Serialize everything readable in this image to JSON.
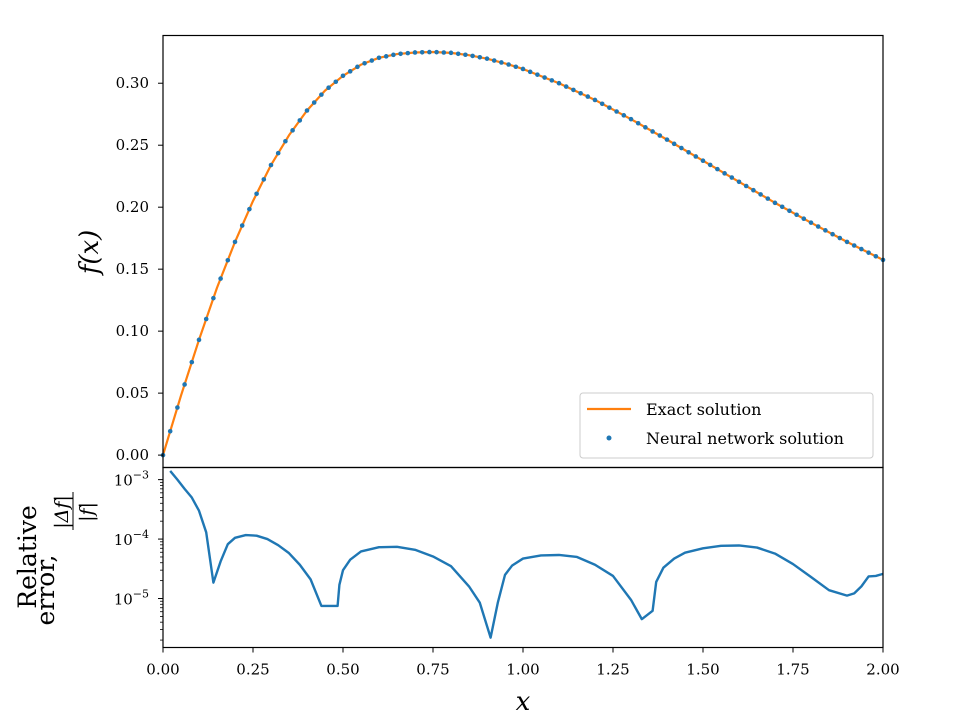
{
  "chart_data": [
    {
      "type": "line",
      "title": "",
      "xlabel": "",
      "ylabel": "f(x)",
      "xlim": [
        0,
        2
      ],
      "ylim": [
        -0.01,
        0.3385
      ],
      "yticks": [
        0.0,
        0.05,
        0.1,
        0.15,
        0.2,
        0.25,
        0.3
      ],
      "ytick_labels": [
        "0.00",
        "0.05",
        "0.10",
        "0.15",
        "0.20",
        "0.25",
        "0.30"
      ],
      "legend": {
        "position": "lower-right",
        "entries": [
          "Exact solution",
          "Neural network solution"
        ]
      },
      "series": [
        {
          "name": "Exact solution",
          "style": "line",
          "color": "#ff7f0e",
          "x": [
            0,
            0.05,
            0.1,
            0.15,
            0.2,
            0.25,
            0.3,
            0.35,
            0.4,
            0.45,
            0.5,
            0.55,
            0.6,
            0.65,
            0.7,
            0.75,
            0.8,
            0.85,
            0.9,
            0.95,
            1.0,
            1.1,
            1.2,
            1.3,
            1.4,
            1.5,
            1.6,
            1.7,
            1.8,
            1.9,
            2.0
          ],
          "values": [
            0.0,
            0.048,
            0.093,
            0.135,
            0.172,
            0.205,
            0.234,
            0.258,
            0.278,
            0.294,
            0.306,
            0.315,
            0.3205,
            0.3235,
            0.3248,
            0.3252,
            0.3245,
            0.3226,
            0.3198,
            0.316,
            0.3115,
            0.3,
            0.2865,
            0.271,
            0.2545,
            0.2375,
            0.2205,
            0.2035,
            0.1875,
            0.172,
            0.1575
          ]
        },
        {
          "name": "Neural network solution",
          "style": "markers",
          "color": "#1f77b4",
          "x": [
            0,
            0.05,
            0.1,
            0.15,
            0.2,
            0.25,
            0.3,
            0.35,
            0.4,
            0.45,
            0.5,
            0.55,
            0.6,
            0.65,
            0.7,
            0.75,
            0.8,
            0.85,
            0.9,
            0.95,
            1.0,
            1.1,
            1.2,
            1.3,
            1.4,
            1.5,
            1.6,
            1.7,
            1.8,
            1.9,
            2.0
          ],
          "values": [
            0.0,
            0.048,
            0.093,
            0.135,
            0.172,
            0.205,
            0.234,
            0.258,
            0.278,
            0.294,
            0.306,
            0.315,
            0.3205,
            0.3235,
            0.3248,
            0.3252,
            0.3245,
            0.3226,
            0.3198,
            0.316,
            0.3115,
            0.3,
            0.2865,
            0.271,
            0.2545,
            0.2375,
            0.2205,
            0.2035,
            0.1875,
            0.172,
            0.1575
          ]
        }
      ]
    },
    {
      "type": "line",
      "title": "",
      "xlabel": "x",
      "ylabel_line1": "Relative",
      "ylabel_line2": "error,",
      "ylabel_fraction_num": "|Δf|",
      "ylabel_fraction_den": "|f|",
      "yscale": "log",
      "xlim": [
        0,
        2
      ],
      "ylim": [
        1.5e-06,
        0.0016
      ],
      "xticks": [
        0,
        0.25,
        0.5,
        0.75,
        1.0,
        1.25,
        1.5,
        1.75,
        2.0
      ],
      "xtick_labels": [
        "0.00",
        "0.25",
        "0.50",
        "0.75",
        "1.00",
        "1.25",
        "1.50",
        "1.75",
        "2.00"
      ],
      "yticks": [
        1e-05,
        0.0001,
        0.001
      ],
      "ytick_labels": [
        {
          "base": "10",
          "exp": "−5"
        },
        {
          "base": "10",
          "exp": "−4"
        },
        {
          "base": "10",
          "exp": "−3"
        }
      ],
      "series": [
        {
          "style": "line",
          "color": "#1f77b4",
          "x": [
            0.02,
            0.04,
            0.06,
            0.08,
            0.1,
            0.12,
            0.14,
            0.16,
            0.18,
            0.2,
            0.23,
            0.26,
            0.29,
            0.32,
            0.35,
            0.38,
            0.41,
            0.44,
            0.465,
            0.48,
            0.485,
            0.49,
            0.5,
            0.52,
            0.55,
            0.6,
            0.65,
            0.7,
            0.75,
            0.8,
            0.85,
            0.88,
            0.91,
            0.93,
            0.95,
            0.97,
            1.0,
            1.05,
            1.1,
            1.15,
            1.2,
            1.25,
            1.3,
            1.33,
            1.36,
            1.37,
            1.39,
            1.42,
            1.45,
            1.5,
            1.55,
            1.6,
            1.65,
            1.7,
            1.75,
            1.8,
            1.85,
            1.9,
            1.92,
            1.94,
            1.96,
            1.98,
            2.0
          ],
          "values": [
            0.0014,
            0.001,
            0.0007,
            0.0005,
            0.0003,
            0.00013,
            1.85e-05,
            4.2e-05,
            8.2e-05,
            0.000105,
            0.000117,
            0.000114,
            0.0001,
            7.9e-05,
            5.8e-05,
            3.7e-05,
            2.1e-05,
            7.5e-06,
            7.5e-06,
            7.5e-06,
            7.5e-06,
            1.7e-05,
            3e-05,
            4.5e-05,
            6.2e-05,
            7.3e-05,
            7.4e-05,
            6.6e-05,
            5.1e-05,
            3.5e-05,
            1.6e-05,
            8.5e-06,
            2.2e-06,
            8.5e-06,
            2.5e-05,
            3.6e-05,
            4.7e-05,
            5.3e-05,
            5.4e-05,
            5e-05,
            3.7e-05,
            2.4e-05,
            9.5e-06,
            4.5e-06,
            6.2e-06,
            1.9e-05,
            3.3e-05,
            4.7e-05,
            5.9e-05,
            7e-05,
            7.7e-05,
            7.8e-05,
            7.2e-05,
            5.7e-05,
            3.8e-05,
            2.3e-05,
            1.38e-05,
            1.12e-05,
            1.22e-05,
            1.6e-05,
            2.35e-05,
            2.4e-05,
            2.6e-05
          ]
        }
      ]
    }
  ]
}
